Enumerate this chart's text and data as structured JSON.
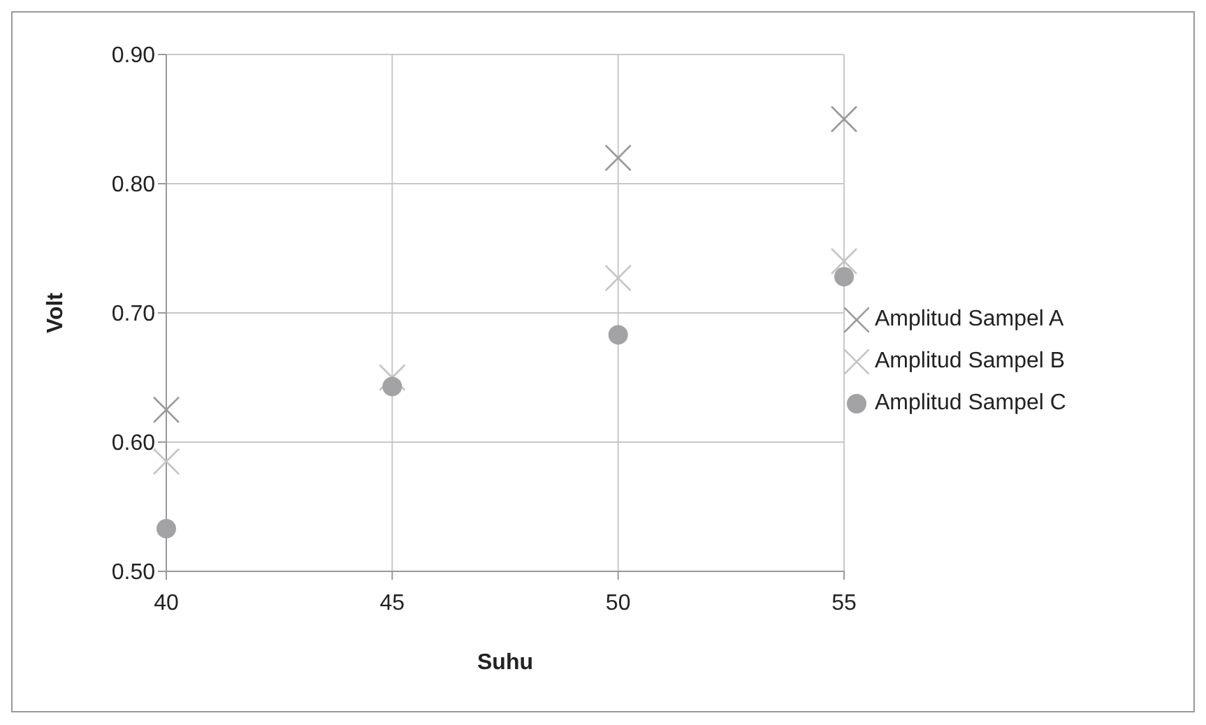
{
  "chart_data": {
    "type": "scatter",
    "xlabel": "Suhu",
    "ylabel": "Volt",
    "x": [
      40,
      45,
      50,
      55
    ],
    "series": [
      {
        "name": "Amplitud Sampel A",
        "color": "#9a9a9a",
        "marker": "cross",
        "values": [
          0.625,
          null,
          0.82,
          0.85
        ]
      },
      {
        "name": "Amplitud Sampel B",
        "color": "#c4c4c4",
        "marker": "cross",
        "values": [
          0.585,
          0.65,
          0.727,
          0.74
        ]
      },
      {
        "name": "Amplitud Sampel C",
        "color": "#a3a3a6",
        "marker": "circle",
        "values": [
          0.533,
          0.643,
          0.683,
          0.728
        ]
      }
    ],
    "xlim": [
      40,
      55
    ],
    "xticks": [
      40,
      45,
      50,
      55
    ],
    "ylim": [
      0.5,
      0.9
    ],
    "yticks": [
      {
        "value": 0.5,
        "label": "0.50"
      },
      {
        "value": 0.6,
        "label": "0.60"
      },
      {
        "value": 0.7,
        "label": "0.70"
      },
      {
        "value": 0.8,
        "label": "0.80"
      },
      {
        "value": 0.9,
        "label": "0.90"
      }
    ],
    "grid": true,
    "legend": "right"
  }
}
